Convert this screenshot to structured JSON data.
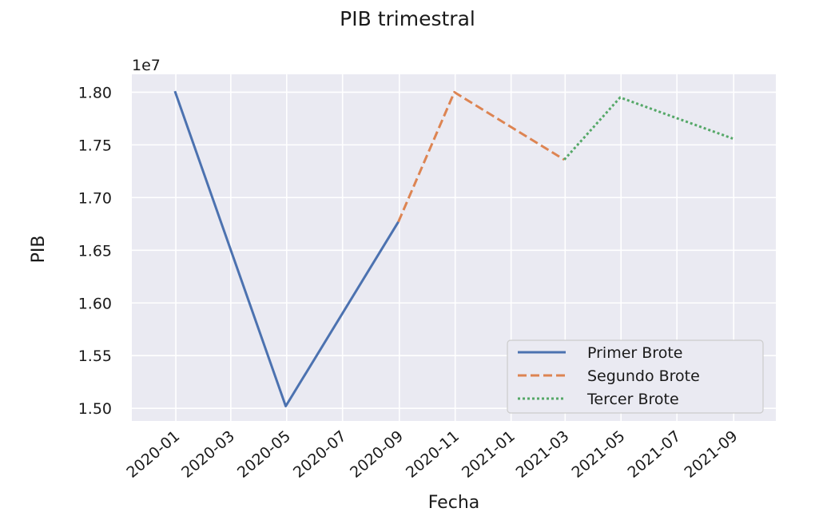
{
  "chart_data": {
    "type": "line",
    "title": "PIB trimestral",
    "xlabel": "Fecha",
    "ylabel": "PIB",
    "y_offset_label": "1e7",
    "x_ticks": [
      "2020-01",
      "2020-03",
      "2020-05",
      "2020-07",
      "2020-09",
      "2020-11",
      "2021-01",
      "2021-03",
      "2021-05",
      "2021-07",
      "2021-09"
    ],
    "y_ticks": [
      "1.50",
      "1.55",
      "1.60",
      "1.65",
      "1.70",
      "1.75",
      "1.80"
    ],
    "xlim": [
      "2019-11-14",
      "2021-10-17"
    ],
    "ylim": [
      1.488,
      1.817
    ],
    "grid": true,
    "legend_position": "lower-right",
    "series": [
      {
        "name": "Primer Brote",
        "color": "#4c72b0",
        "style": "solid",
        "points": [
          {
            "x": "2019-12-31",
            "y": 1.801
          },
          {
            "x": "2020-04-30",
            "y": 1.502
          },
          {
            "x": "2020-08-31",
            "y": 1.677
          }
        ]
      },
      {
        "name": "Segundo Brote",
        "color": "#dd8452",
        "style": "dashed",
        "points": [
          {
            "x": "2020-08-31",
            "y": 1.677
          },
          {
            "x": "2020-10-31",
            "y": 1.8
          },
          {
            "x": "2021-02-28",
            "y": 1.736
          }
        ]
      },
      {
        "name": "Tercer Brote",
        "color": "#55a868",
        "style": "dotted",
        "points": [
          {
            "x": "2021-02-28",
            "y": 1.736
          },
          {
            "x": "2021-04-30",
            "y": 1.795
          },
          {
            "x": "2021-08-31",
            "y": 1.756
          }
        ]
      }
    ]
  }
}
